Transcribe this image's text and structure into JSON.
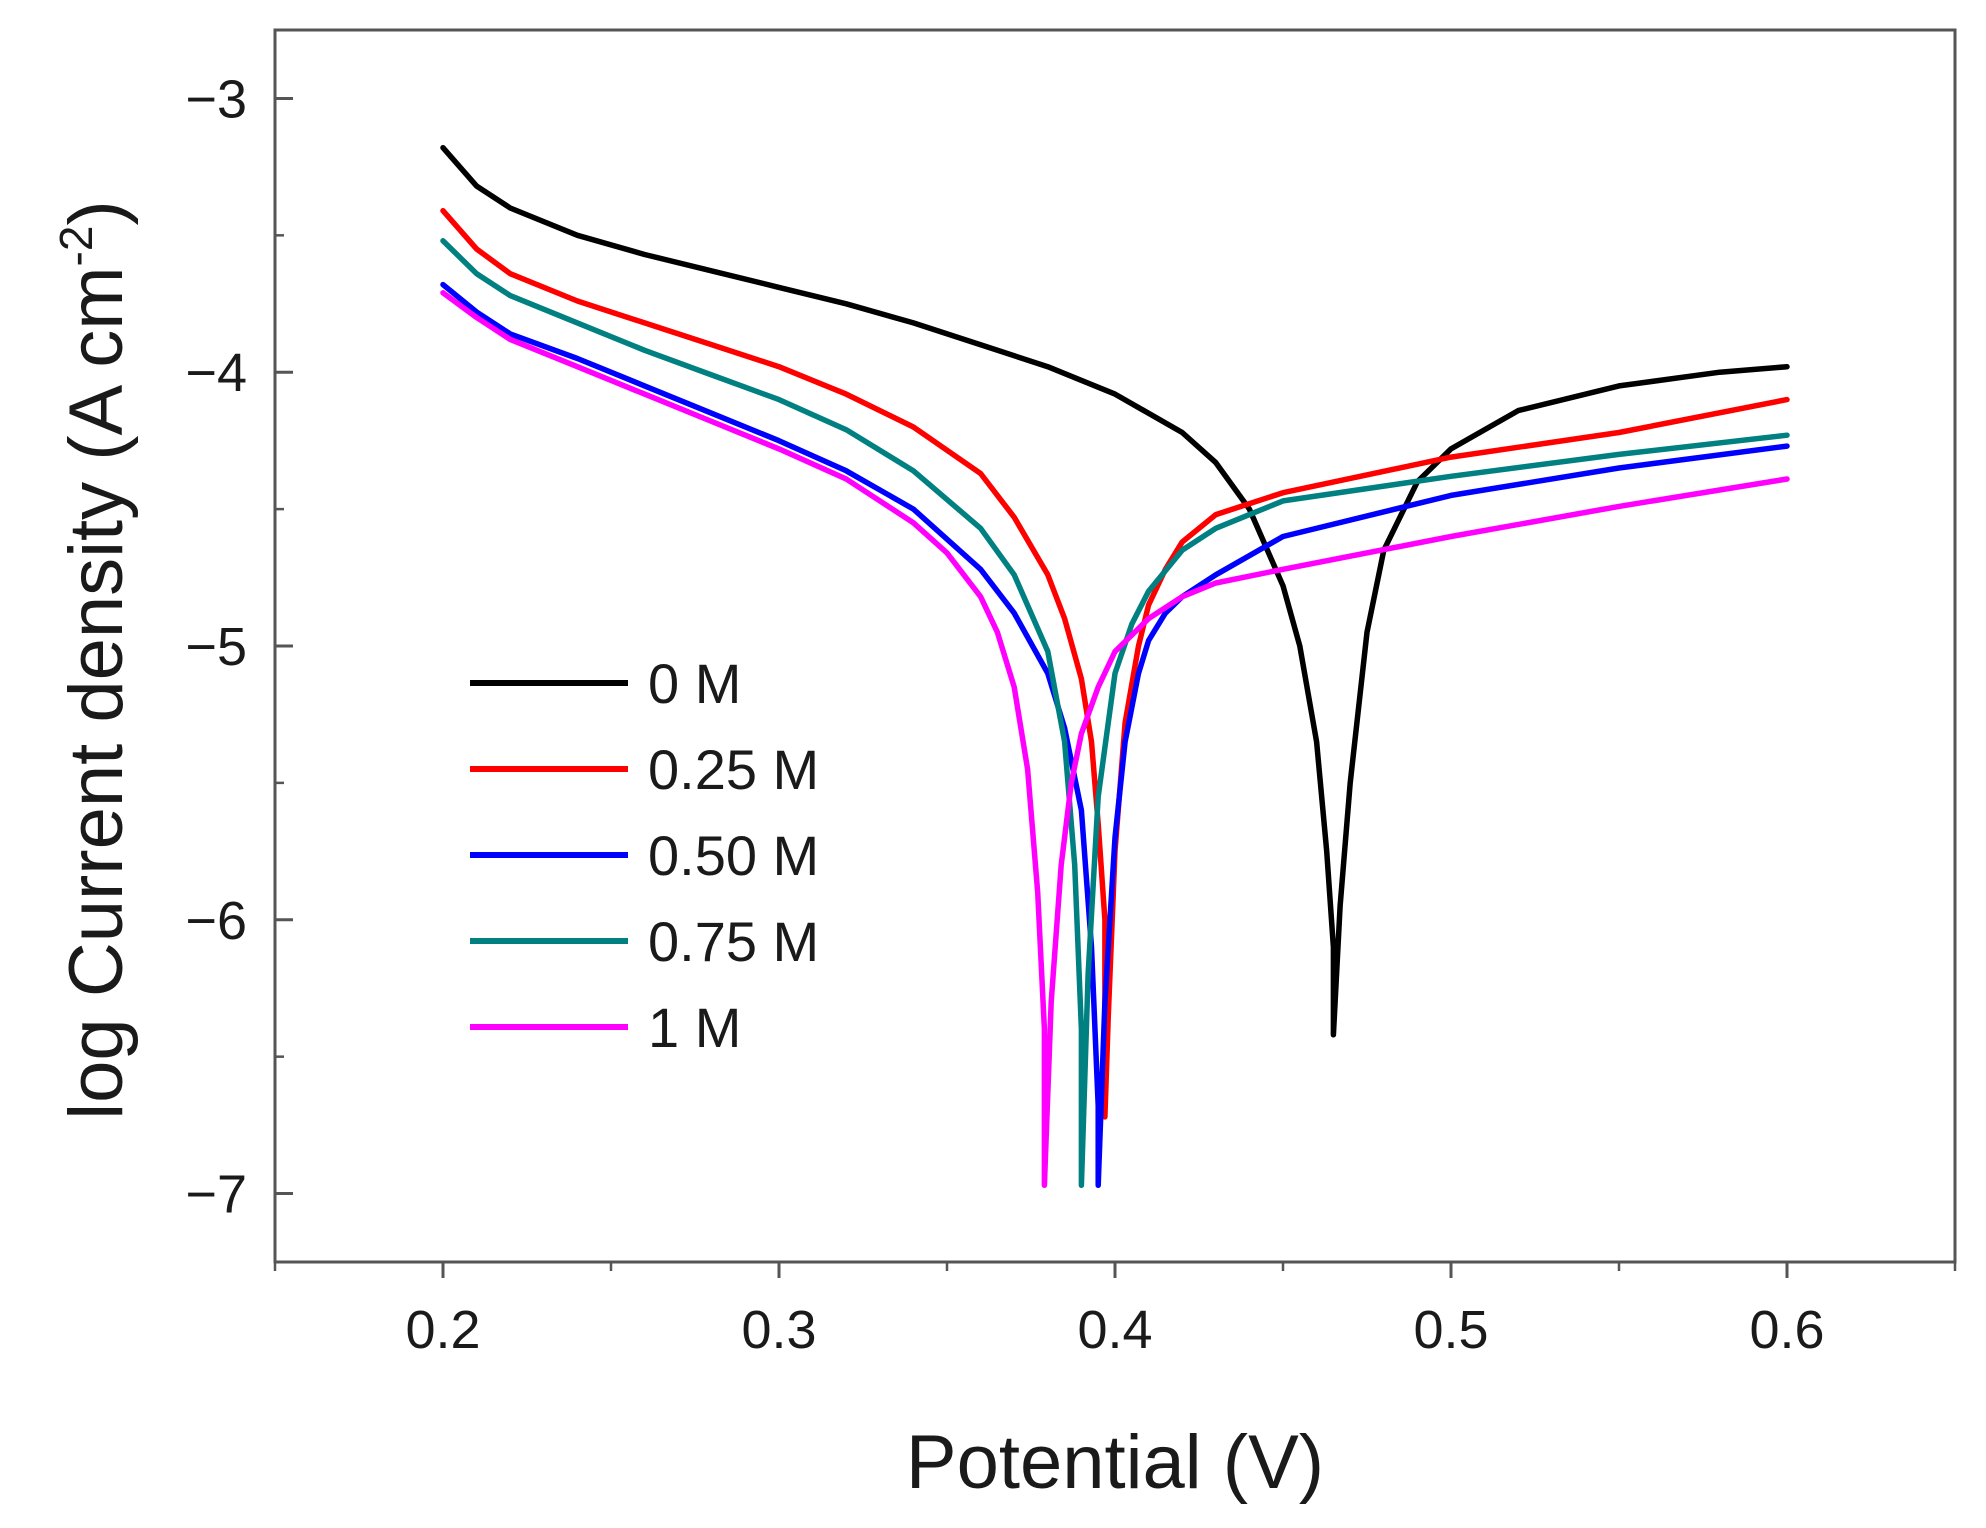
{
  "chart_data": {
    "type": "line",
    "title": "",
    "xlabel": "Potential (V)",
    "ylabel_main": "log Current density (A cm",
    "ylabel_sup": "-2",
    "ylabel_close": ")",
    "xlim": [
      0.15,
      0.65
    ],
    "ylim": [
      -7.25,
      -2.75
    ],
    "xticks": [
      {
        "value": 0.2,
        "label": "0.2"
      },
      {
        "value": 0.3,
        "label": "0.3"
      },
      {
        "value": 0.4,
        "label": "0.4"
      },
      {
        "value": 0.5,
        "label": "0.5"
      },
      {
        "value": 0.6,
        "label": "0.6"
      }
    ],
    "xminor": [
      0.15,
      0.25,
      0.35,
      0.45,
      0.55,
      0.65
    ],
    "yticks": [
      {
        "value": -3,
        "label": "−3"
      },
      {
        "value": -4,
        "label": "−4"
      },
      {
        "value": -5,
        "label": "−5"
      },
      {
        "value": -6,
        "label": "−6"
      },
      {
        "value": -7,
        "label": "−7"
      }
    ],
    "yminor": [
      -3.5,
      -4.5,
      -5.5,
      -6.5
    ],
    "legend_position": "center-left",
    "grid": false,
    "series": [
      {
        "name": "0 M",
        "color": "#000000",
        "x": [
          0.2,
          0.21,
          0.22,
          0.24,
          0.26,
          0.28,
          0.3,
          0.32,
          0.34,
          0.36,
          0.38,
          0.4,
          0.42,
          0.43,
          0.44,
          0.45,
          0.455,
          0.46,
          0.463,
          0.465,
          0.465,
          0.467,
          0.47,
          0.475,
          0.48,
          0.49,
          0.5,
          0.52,
          0.55,
          0.58,
          0.6
        ],
        "y": [
          -3.18,
          -3.32,
          -3.4,
          -3.5,
          -3.57,
          -3.63,
          -3.69,
          -3.75,
          -3.82,
          -3.9,
          -3.98,
          -4.08,
          -4.22,
          -4.33,
          -4.5,
          -4.78,
          -5.0,
          -5.35,
          -5.75,
          -6.1,
          -6.42,
          -5.95,
          -5.5,
          -4.95,
          -4.65,
          -4.4,
          -4.28,
          -4.14,
          -4.05,
          -4.0,
          -3.98
        ]
      },
      {
        "name": "0.25 M",
        "color": "#ff0000",
        "x": [
          0.2,
          0.21,
          0.22,
          0.24,
          0.26,
          0.28,
          0.3,
          0.32,
          0.34,
          0.36,
          0.37,
          0.38,
          0.385,
          0.39,
          0.393,
          0.395,
          0.397,
          0.397,
          0.398,
          0.4,
          0.403,
          0.407,
          0.41,
          0.415,
          0.42,
          0.43,
          0.45,
          0.5,
          0.55,
          0.6
        ],
        "y": [
          -3.41,
          -3.55,
          -3.64,
          -3.74,
          -3.82,
          -3.9,
          -3.98,
          -4.08,
          -4.2,
          -4.37,
          -4.53,
          -4.74,
          -4.9,
          -5.12,
          -5.35,
          -5.65,
          -6.0,
          -6.72,
          -6.35,
          -5.75,
          -5.28,
          -5.0,
          -4.85,
          -4.72,
          -4.62,
          -4.52,
          -4.44,
          -4.31,
          -4.22,
          -4.1
        ]
      },
      {
        "name": "0.50 M",
        "color": "#0000ff",
        "x": [
          0.2,
          0.21,
          0.22,
          0.24,
          0.26,
          0.28,
          0.3,
          0.32,
          0.34,
          0.36,
          0.37,
          0.38,
          0.385,
          0.39,
          0.393,
          0.395,
          0.395,
          0.397,
          0.4,
          0.403,
          0.407,
          0.41,
          0.415,
          0.42,
          0.43,
          0.45,
          0.5,
          0.55,
          0.6
        ],
        "y": [
          -3.68,
          -3.78,
          -3.86,
          -3.95,
          -4.05,
          -4.15,
          -4.25,
          -4.36,
          -4.5,
          -4.72,
          -4.88,
          -5.1,
          -5.3,
          -5.6,
          -6.1,
          -6.68,
          -6.97,
          -6.3,
          -5.7,
          -5.35,
          -5.1,
          -4.98,
          -4.88,
          -4.82,
          -4.74,
          -4.6,
          -4.45,
          -4.35,
          -4.27
        ]
      },
      {
        "name": "0.75 M",
        "color": "#008080",
        "x": [
          0.2,
          0.21,
          0.22,
          0.24,
          0.26,
          0.28,
          0.3,
          0.32,
          0.34,
          0.36,
          0.37,
          0.375,
          0.38,
          0.385,
          0.388,
          0.39,
          0.39,
          0.392,
          0.395,
          0.4,
          0.405,
          0.41,
          0.42,
          0.43,
          0.45,
          0.5,
          0.55,
          0.6
        ],
        "y": [
          -3.52,
          -3.64,
          -3.72,
          -3.82,
          -3.92,
          -4.01,
          -4.1,
          -4.21,
          -4.36,
          -4.57,
          -4.74,
          -4.88,
          -5.02,
          -5.35,
          -5.8,
          -6.4,
          -6.97,
          -6.2,
          -5.55,
          -5.1,
          -4.92,
          -4.8,
          -4.65,
          -4.57,
          -4.47,
          -4.38,
          -4.3,
          -4.23
        ]
      },
      {
        "name": "1 M",
        "color": "#ff00ff",
        "x": [
          0.2,
          0.21,
          0.22,
          0.24,
          0.26,
          0.28,
          0.3,
          0.32,
          0.34,
          0.35,
          0.36,
          0.365,
          0.37,
          0.374,
          0.377,
          0.379,
          0.379,
          0.381,
          0.384,
          0.387,
          0.39,
          0.395,
          0.4,
          0.41,
          0.42,
          0.43,
          0.45,
          0.5,
          0.55,
          0.6
        ],
        "y": [
          -3.71,
          -3.8,
          -3.88,
          -3.98,
          -4.08,
          -4.18,
          -4.28,
          -4.39,
          -4.55,
          -4.66,
          -4.82,
          -4.95,
          -5.15,
          -5.45,
          -5.9,
          -6.4,
          -6.97,
          -6.3,
          -5.8,
          -5.5,
          -5.32,
          -5.15,
          -5.02,
          -4.9,
          -4.82,
          -4.77,
          -4.72,
          -4.6,
          -4.49,
          -4.39
        ]
      }
    ]
  }
}
